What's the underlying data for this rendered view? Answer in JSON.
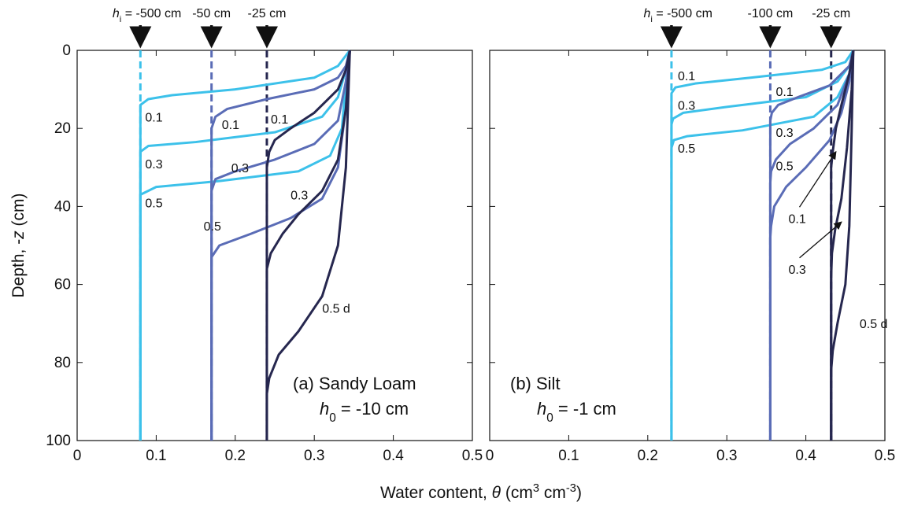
{
  "x_label": [
    "Water content, ",
    "θ",
    " (cm",
    "3",
    " cm",
    "-3",
    ")"
  ],
  "y_label": [
    "Depth, -",
    "z",
    " (cm)"
  ],
  "chart_data": [
    {
      "type": "line",
      "title": "(a) Sandy Loam",
      "subtitle": [
        "h",
        "0",
        " = -10 cm"
      ],
      "xlim": [
        0,
        0.5
      ],
      "xticks": [
        0,
        0.1,
        0.2,
        0.3,
        0.4,
        0.5
      ],
      "ylim": [
        100,
        0
      ],
      "yticks": [
        0,
        20,
        40,
        60,
        80,
        100
      ],
      "ytick_labels": true,
      "initial": [
        {
          "label": [
            "h",
            "i",
            " = -500 cm"
          ],
          "theta": 0.08,
          "color": "#3cc1ea"
        },
        {
          "label": [
            "-50 cm"
          ],
          "theta": 0.17,
          "color": "#5a6cb6"
        },
        {
          "label": [
            "-25 cm"
          ],
          "theta": 0.24,
          "color": "#26274f"
        }
      ],
      "series": [
        {
          "label": "0.1",
          "color": "#3cc1ea",
          "x": [
            0.345,
            0.33,
            0.3,
            0.2,
            0.12,
            0.09,
            0.08,
            0.08
          ],
          "values": [
            0,
            4,
            7,
            10,
            11.5,
            12.5,
            14,
            100
          ]
        },
        {
          "label": "0.3",
          "color": "#3cc1ea",
          "x": [
            0.345,
            0.34,
            0.33,
            0.31,
            0.25,
            0.15,
            0.09,
            0.08,
            0.08
          ],
          "values": [
            0,
            5,
            12,
            17,
            21,
            23.5,
            24.5,
            26,
            100
          ]
        },
        {
          "label": "0.5",
          "color": "#3cc1ea",
          "x": [
            0.345,
            0.34,
            0.335,
            0.32,
            0.28,
            0.18,
            0.1,
            0.08,
            0.08
          ],
          "values": [
            0,
            8,
            20,
            27,
            31,
            33.5,
            35,
            37,
            100
          ]
        },
        {
          "label": "0.1",
          "color": "#5a6cb6",
          "x": [
            0.345,
            0.34,
            0.33,
            0.3,
            0.24,
            0.19,
            0.175,
            0.17,
            0.17
          ],
          "values": [
            0,
            4,
            7,
            10,
            12.5,
            15,
            17,
            20,
            100
          ]
        },
        {
          "label": "0.3",
          "color": "#5a6cb6",
          "x": [
            0.345,
            0.34,
            0.33,
            0.3,
            0.25,
            0.2,
            0.175,
            0.17,
            0.17
          ],
          "values": [
            0,
            8,
            18,
            24,
            28,
            31,
            33,
            36,
            100
          ]
        },
        {
          "label": "0.5",
          "color": "#5a6cb6",
          "x": [
            0.345,
            0.34,
            0.33,
            0.31,
            0.27,
            0.22,
            0.18,
            0.17,
            0.17
          ],
          "values": [
            0,
            15,
            30,
            38,
            43,
            47,
            50,
            53,
            100
          ]
        },
        {
          "label": "0.1",
          "color": "#26274f",
          "x": [
            0.345,
            0.34,
            0.33,
            0.3,
            0.27,
            0.25,
            0.243,
            0.24,
            0.24
          ],
          "values": [
            0,
            5,
            10,
            16,
            20,
            23,
            26,
            30,
            100
          ]
        },
        {
          "label": "0.3",
          "color": "#26274f",
          "x": [
            0.345,
            0.34,
            0.33,
            0.31,
            0.28,
            0.26,
            0.245,
            0.24,
            0.24
          ],
          "values": [
            0,
            15,
            28,
            36,
            42,
            47,
            52,
            56,
            100
          ]
        },
        {
          "label": "0.5 d",
          "color": "#26274f",
          "x": [
            0.345,
            0.34,
            0.33,
            0.31,
            0.28,
            0.255,
            0.243,
            0.24,
            0.24
          ],
          "values": [
            0,
            30,
            50,
            63,
            72,
            78,
            84,
            88,
            100
          ]
        }
      ]
    },
    {
      "type": "line",
      "title": "(b) Silt",
      "subtitle": [
        "h",
        "0",
        " = -1 cm"
      ],
      "xlim": [
        0,
        0.5
      ],
      "xticks": [
        0,
        0.1,
        0.2,
        0.3,
        0.4,
        0.5
      ],
      "ylim": [
        100,
        0
      ],
      "yticks": [
        0,
        20,
        40,
        60,
        80,
        100
      ],
      "ytick_labels": false,
      "initial": [
        {
          "label": [
            "h",
            "i",
            " = -500 cm"
          ],
          "theta": 0.23,
          "color": "#3cc1ea"
        },
        {
          "label": [
            "-100 cm"
          ],
          "theta": 0.355,
          "color": "#5a6cb6"
        },
        {
          "label": [
            "-25 cm"
          ],
          "theta": 0.432,
          "color": "#26274f"
        }
      ],
      "series": [
        {
          "label": "0.1",
          "color": "#3cc1ea",
          "x": [
            0.46,
            0.45,
            0.42,
            0.33,
            0.26,
            0.235,
            0.23,
            0.23
          ],
          "values": [
            0,
            3,
            5,
            7,
            8.5,
            9.5,
            11,
            100
          ]
        },
        {
          "label": "0.3",
          "color": "#3cc1ea",
          "x": [
            0.46,
            0.455,
            0.44,
            0.4,
            0.3,
            0.245,
            0.232,
            0.23,
            0.23
          ],
          "values": [
            0,
            4,
            8,
            12,
            14.5,
            16,
            17.5,
            19,
            100
          ]
        },
        {
          "label": "0.5",
          "color": "#3cc1ea",
          "x": [
            0.46,
            0.455,
            0.44,
            0.41,
            0.32,
            0.25,
            0.233,
            0.23,
            0.23
          ],
          "values": [
            0,
            6,
            12,
            17,
            20.5,
            22,
            23,
            25,
            100
          ]
        },
        {
          "label": "0.1",
          "color": "#5a6cb6",
          "x": [
            0.46,
            0.455,
            0.43,
            0.39,
            0.365,
            0.357,
            0.355,
            0.355
          ],
          "values": [
            0,
            4,
            9,
            12,
            14,
            16,
            18,
            100
          ]
        },
        {
          "label": "0.3",
          "color": "#5a6cb6",
          "x": [
            0.46,
            0.455,
            0.44,
            0.41,
            0.38,
            0.362,
            0.356,
            0.355,
            0.355
          ],
          "values": [
            0,
            6,
            14,
            20,
            24,
            28,
            31,
            34,
            100
          ]
        },
        {
          "label": "0.5",
          "color": "#5a6cb6",
          "x": [
            0.46,
            0.455,
            0.445,
            0.43,
            0.4,
            0.375,
            0.36,
            0.356,
            0.355,
            0.355
          ],
          "values": [
            0,
            8,
            16,
            23,
            30,
            35,
            40,
            45,
            48,
            100
          ]
        },
        {
          "label": "0.1",
          "color": "#26274f",
          "x": [
            0.46,
            0.455,
            0.445,
            0.438,
            0.434,
            0.432,
            0.432
          ],
          "values": [
            0,
            6,
            14,
            20,
            26,
            30,
            100
          ]
        },
        {
          "label": "0.3",
          "color": "#26274f",
          "x": [
            0.46,
            0.458,
            0.452,
            0.445,
            0.437,
            0.433,
            0.432,
            0.432
          ],
          "values": [
            0,
            10,
            25,
            38,
            46,
            52,
            58,
            100
          ]
        },
        {
          "label": "0.5 d",
          "color": "#26274f",
          "x": [
            0.46,
            0.458,
            0.455,
            0.45,
            0.44,
            0.434,
            0.432,
            0.432
          ],
          "values": [
            0,
            20,
            45,
            60,
            70,
            77,
            82,
            100
          ]
        }
      ]
    }
  ]
}
